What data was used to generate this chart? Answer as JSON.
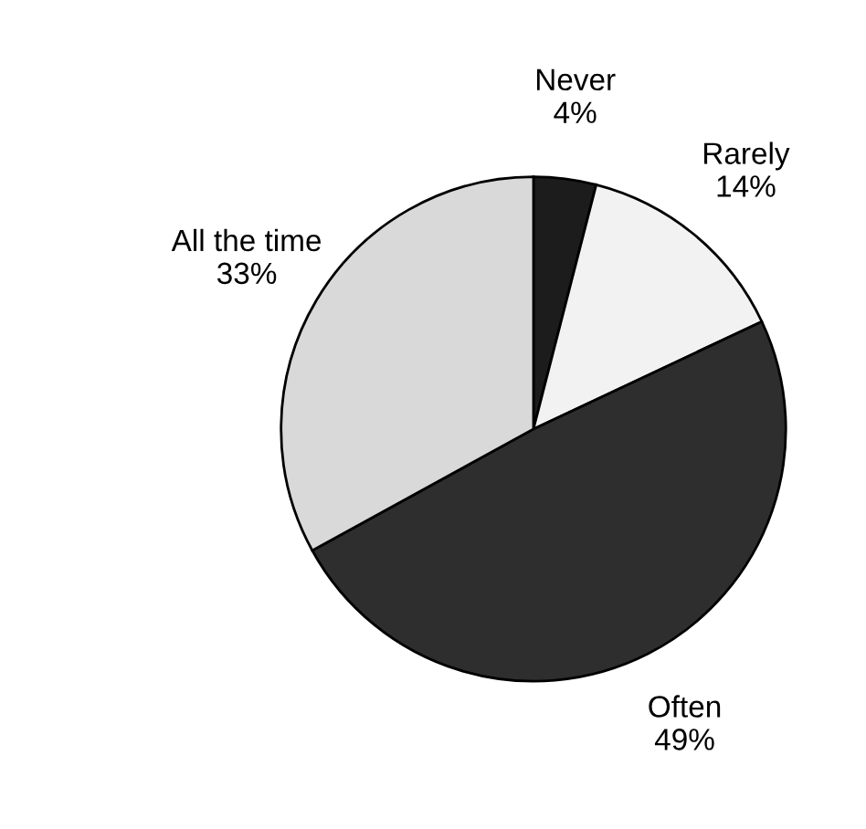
{
  "chart_data": {
    "type": "pie",
    "categories": [
      "Never",
      "Rarely",
      "Often",
      "All the time"
    ],
    "values": [
      4,
      14,
      49,
      33
    ],
    "value_labels": [
      "4%",
      "14%",
      "49%",
      "33%"
    ],
    "colors": [
      "#1c1c1c",
      "#f2f2f2",
      "#2e2e2e",
      "#d9d9d9"
    ]
  }
}
